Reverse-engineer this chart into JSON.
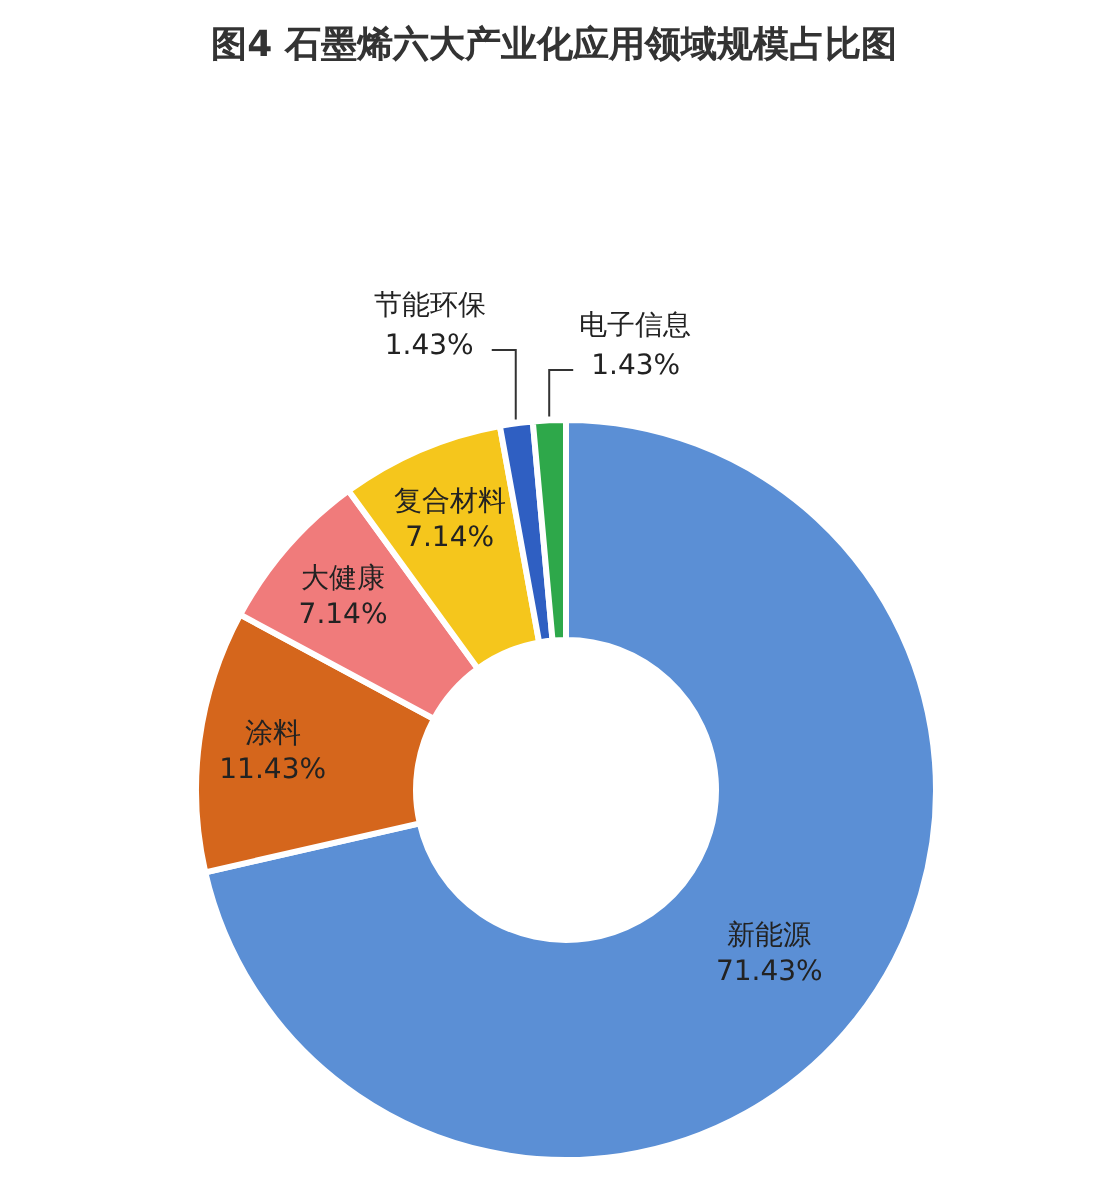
{
  "chart_data": {
    "type": "donut",
    "title": "图4 石墨烯六大产业化应用领域规模占比图",
    "categories": [
      "新能源",
      "涂料",
      "大健康",
      "复合材料",
      "节能环保",
      "电子信息"
    ],
    "values": [
      71.43,
      11.43,
      7.14,
      7.14,
      1.43,
      1.43
    ],
    "value_labels": [
      "71.43%",
      "11.43%",
      "7.14%",
      "7.14%",
      "1.43%",
      "1.43%"
    ],
    "colors": [
      "#5b8fd5",
      "#d5661c",
      "#f07b7b",
      "#f5c61c",
      "#2f5fc2",
      "#2ea84a"
    ]
  }
}
